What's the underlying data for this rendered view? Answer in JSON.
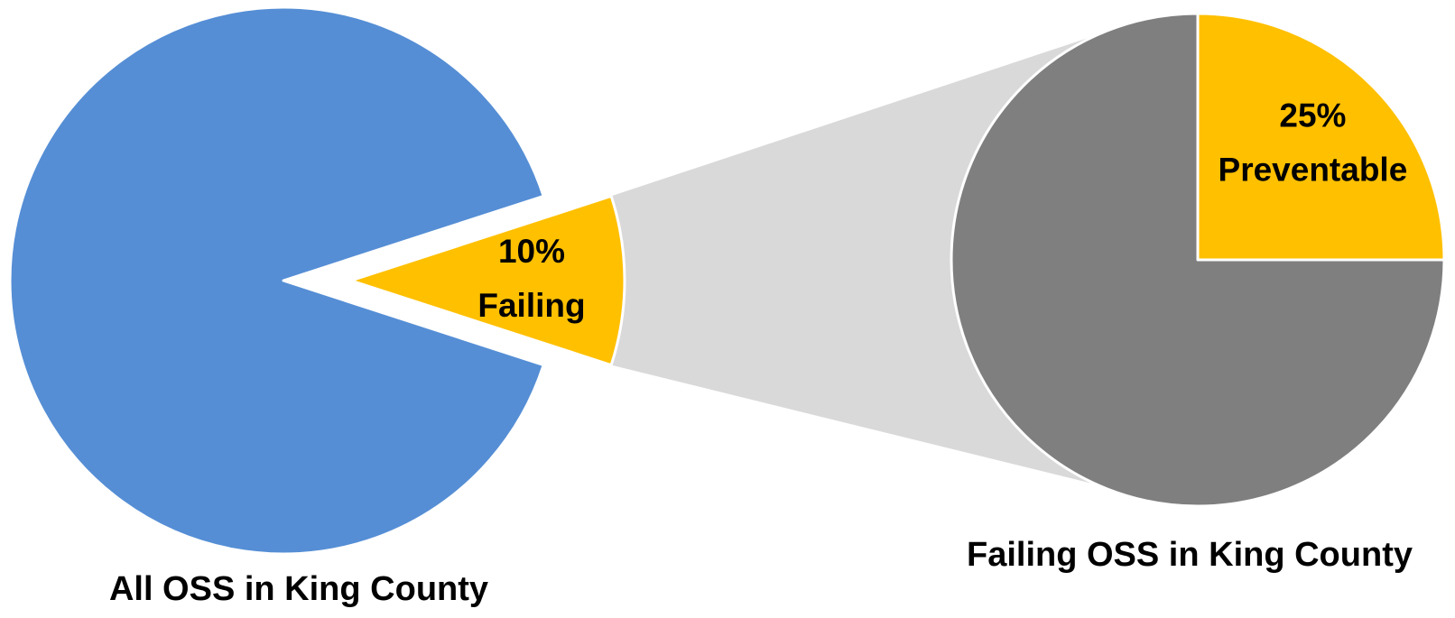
{
  "chart_data": [
    {
      "type": "pie",
      "title": "All OSS in King County",
      "categories": [
        null,
        "Failing"
      ],
      "values": [
        90,
        10
      ],
      "value_labels": [
        null,
        "10%"
      ],
      "colors": [
        "#558ed5",
        "#ffc000"
      ]
    },
    {
      "type": "pie",
      "title": "Failing OSS in King County",
      "categories": [
        "Preventable",
        null
      ],
      "values": [
        25,
        75
      ],
      "value_labels": [
        "25%",
        null
      ],
      "colors": [
        "#ffc000",
        "#7f7f7f"
      ]
    }
  ]
}
